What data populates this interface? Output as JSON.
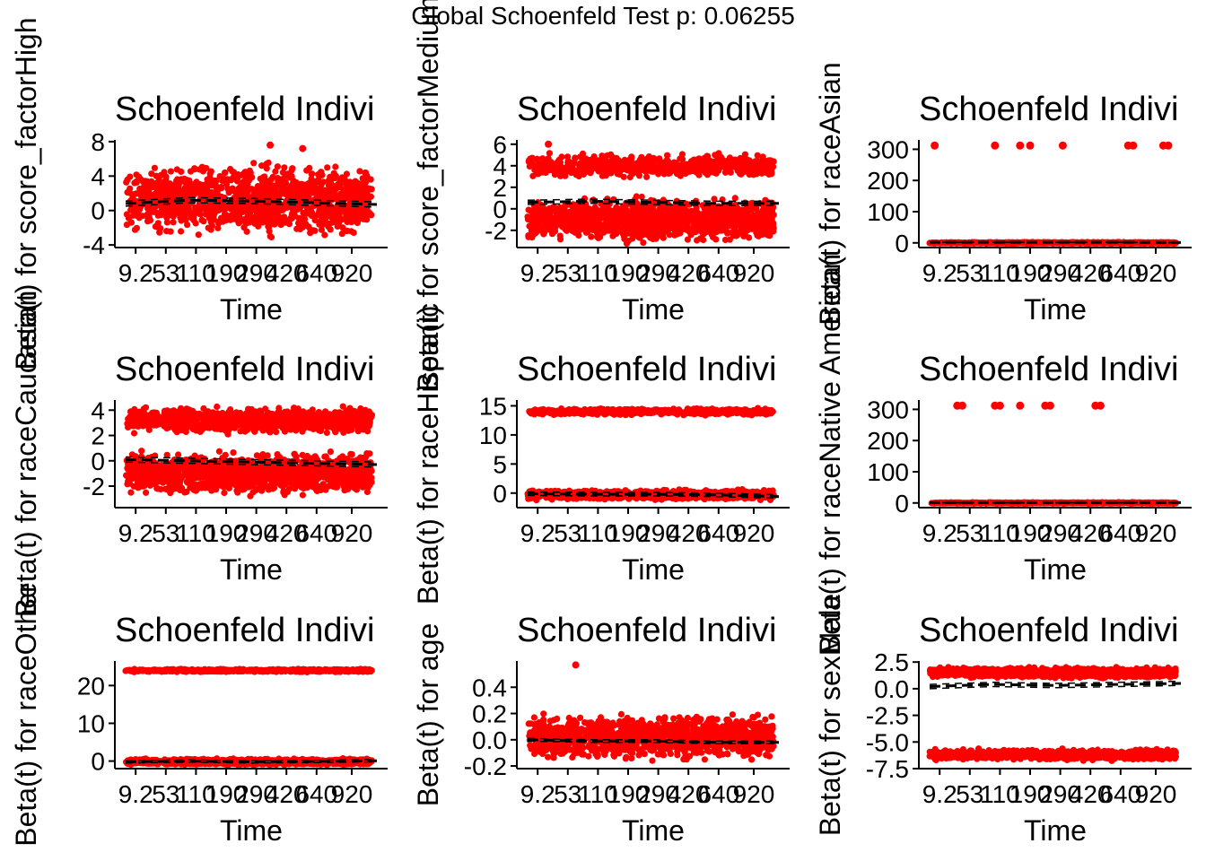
{
  "page_title": "Global Schoenfeld Test p: 0.06255",
  "colors": {
    "points": "#ff0000",
    "fit": "#000000",
    "axis": "#000000"
  },
  "chart_data": [
    {
      "type": "scatter",
      "title": "Schoenfeld Indivi",
      "xlabel": "Time",
      "ylabel": "Beta(t) for score_factorHigh",
      "x_tick_labels": [
        "9.2",
        "53",
        "110",
        "190",
        "290",
        "420",
        "640",
        "920"
      ],
      "y_ticks": [
        -4,
        0,
        4,
        8
      ],
      "y_tick_labels": [
        "-4",
        "0",
        "4",
        "8"
      ],
      "ylim": [
        -4.3,
        8.2
      ],
      "bands": [
        {
          "center": 1.2,
          "spread": 5,
          "density": 1,
          "outliers": [
            7.6,
            7.2
          ]
        }
      ],
      "fit_line": [
        0.8,
        1.2,
        1.1,
        0.9,
        0.7
      ],
      "ci_offset": 0.3
    },
    {
      "type": "scatter",
      "title": "Schoenfeld Indivi",
      "xlabel": "Time",
      "ylabel": "Beta(t) for score_factorMedium",
      "x_tick_labels": [
        "9.2",
        "53",
        "110",
        "190",
        "290",
        "420",
        "640",
        "920"
      ],
      "y_ticks": [
        -2,
        0,
        2,
        4,
        6
      ],
      "y_tick_labels": [
        "-2",
        "0",
        "2",
        "4",
        "6"
      ],
      "ylim": [
        -3.6,
        6.4
      ],
      "bands": [
        {
          "center": 4.0,
          "spread": 1.3,
          "density": 0.5
        },
        {
          "center": -1.0,
          "spread": 2.4,
          "density": 1,
          "outliers": [
            6.0
          ]
        }
      ],
      "fit_line": [
        0.6,
        0.7,
        0.6,
        0.5,
        0.5
      ],
      "ci_offset": 0.2
    },
    {
      "type": "scatter",
      "title": "Schoenfeld Indivi",
      "xlabel": "Time",
      "ylabel": "Beta(t) for raceAsian",
      "x_tick_labels": [
        "9.2",
        "53",
        "110",
        "190",
        "290",
        "420",
        "640",
        "920"
      ],
      "y_ticks": [
        0,
        100,
        200,
        300
      ],
      "y_tick_labels": [
        "0",
        "100",
        "200",
        "300"
      ],
      "ylim": [
        -15,
        330
      ],
      "bands": [
        {
          "center": 0,
          "spread": 3,
          "density": 0.6
        }
      ],
      "outlier_points": [
        {
          "t": 0.02,
          "y": 312
        },
        {
          "t": 0.26,
          "y": 312
        },
        {
          "t": 0.36,
          "y": 312
        },
        {
          "t": 0.4,
          "y": 312
        },
        {
          "t": 0.53,
          "y": 312
        },
        {
          "t": 0.79,
          "y": 312
        },
        {
          "t": 0.81,
          "y": 312
        },
        {
          "t": 0.93,
          "y": 312
        },
        {
          "t": 0.95,
          "y": 312
        }
      ],
      "fit_line": [
        2,
        2,
        2,
        2,
        1
      ],
      "ci_offset": 1
    },
    {
      "type": "scatter",
      "title": "Schoenfeld Indivi",
      "xlabel": "Time",
      "ylabel": "Beta(t) for raceCaucasian",
      "x_tick_labels": [
        "9.2",
        "53",
        "110",
        "190",
        "290",
        "420",
        "640",
        "920"
      ],
      "y_ticks": [
        -2,
        0,
        2,
        4
      ],
      "y_tick_labels": [
        "-2",
        "0",
        "2",
        "4"
      ],
      "ylim": [
        -3.7,
        4.8
      ],
      "bands": [
        {
          "center": 3.2,
          "spread": 1.2,
          "density": 0.8
        },
        {
          "center": -1.0,
          "spread": 2.0,
          "density": 1
        }
      ],
      "fit_line": [
        0.1,
        0.0,
        -0.1,
        -0.2,
        -0.3
      ],
      "ci_offset": 0.2
    },
    {
      "type": "scatter",
      "title": "Schoenfeld Indivi",
      "xlabel": "Time",
      "ylabel": "Beta(t) for raceHispanic",
      "x_tick_labels": [
        "9.2",
        "53",
        "110",
        "190",
        "290",
        "420",
        "640",
        "920"
      ],
      "y_ticks": [
        0,
        5,
        10,
        15
      ],
      "y_tick_labels": [
        "0",
        "5",
        "10",
        "15"
      ],
      "ylim": [
        -2.5,
        16
      ],
      "bands": [
        {
          "center": 14.0,
          "spread": 0.7,
          "density": 0.5
        },
        {
          "center": -0.3,
          "spread": 1.0,
          "density": 1
        }
      ],
      "fit_line": [
        -0.1,
        -0.2,
        -0.2,
        -0.3,
        -0.6
      ],
      "ci_offset": 0.3
    },
    {
      "type": "scatter",
      "title": "Schoenfeld Indivi",
      "xlabel": "Time",
      "ylabel": "Beta(t) for raceNative American",
      "x_tick_labels": [
        "9.2",
        "53",
        "110",
        "190",
        "290",
        "420",
        "640",
        "920"
      ],
      "y_ticks": [
        0,
        100,
        200,
        300
      ],
      "y_tick_labels": [
        "0",
        "100",
        "200",
        "300"
      ],
      "ylim": [
        -15,
        330
      ],
      "bands": [
        {
          "center": 0,
          "spread": 2.5,
          "density": 0.5
        }
      ],
      "outlier_points": [
        {
          "t": 0.11,
          "y": 312
        },
        {
          "t": 0.13,
          "y": 312
        },
        {
          "t": 0.26,
          "y": 312
        },
        {
          "t": 0.28,
          "y": 312
        },
        {
          "t": 0.36,
          "y": 312
        },
        {
          "t": 0.46,
          "y": 312
        },
        {
          "t": 0.48,
          "y": 312
        },
        {
          "t": 0.66,
          "y": 312
        },
        {
          "t": 0.68,
          "y": 312
        }
      ],
      "fit_line": [
        1,
        1,
        1,
        1,
        1
      ],
      "ci_offset": 1
    },
    {
      "type": "scatter",
      "title": "Schoenfeld Indivi",
      "xlabel": "Time",
      "ylabel": "Beta(t) for raceOther",
      "x_tick_labels": [
        "9.2",
        "53",
        "110",
        "190",
        "290",
        "420",
        "640",
        "920"
      ],
      "y_ticks": [
        0,
        10,
        20
      ],
      "y_tick_labels": [
        "0",
        "10",
        "20"
      ],
      "ylim": [
        -2,
        26.5
      ],
      "bands": [
        {
          "center": 24.0,
          "spread": 0.5,
          "density": 0.45
        },
        {
          "center": -0.2,
          "spread": 1.0,
          "density": 1
        }
      ],
      "fit_line": [
        -0.2,
        0.0,
        -0.2,
        -0.1,
        0.1
      ],
      "ci_offset": 0.3
    },
    {
      "type": "scatter",
      "title": "Schoenfeld Indivi",
      "xlabel": "Time",
      "ylabel": "Beta(t) for age",
      "x_tick_labels": [
        "9.2",
        "53",
        "110",
        "190",
        "290",
        "420",
        "640",
        "920"
      ],
      "y_ticks": [
        -0.2,
        0.0,
        0.2,
        0.4
      ],
      "y_tick_labels": [
        "-0.2",
        "0.0",
        "0.2",
        "0.4"
      ],
      "ylim": [
        -0.22,
        0.6
      ],
      "bands": [
        {
          "center": 0.02,
          "spread": 0.2,
          "density": 1,
          "outliers": [
            0.57
          ]
        }
      ],
      "fit_line": [
        0.0,
        -0.01,
        -0.01,
        -0.02,
        -0.02
      ],
      "ci_offset": 0.01
    },
    {
      "type": "scatter",
      "title": "Schoenfeld Indivi",
      "xlabel": "Time",
      "ylabel": "Beta(t) for sexMale",
      "x_tick_labels": [
        "9.2",
        "53",
        "110",
        "190",
        "290",
        "420",
        "640",
        "920"
      ],
      "y_ticks": [
        -7.5,
        -5.0,
        -2.5,
        0.0,
        2.5
      ],
      "y_tick_labels": [
        "-7.5",
        "-5.0",
        "-2.5",
        "0.0",
        "2.5"
      ],
      "ylim": [
        -7.5,
        2.6
      ],
      "bands": [
        {
          "center": 1.5,
          "spread": 0.6,
          "density": 1
        },
        {
          "center": -6.2,
          "spread": 0.6,
          "density": 0.8
        }
      ],
      "fit_line": [
        0.2,
        0.4,
        0.3,
        0.4,
        0.5
      ],
      "ci_offset": 0.2
    }
  ]
}
